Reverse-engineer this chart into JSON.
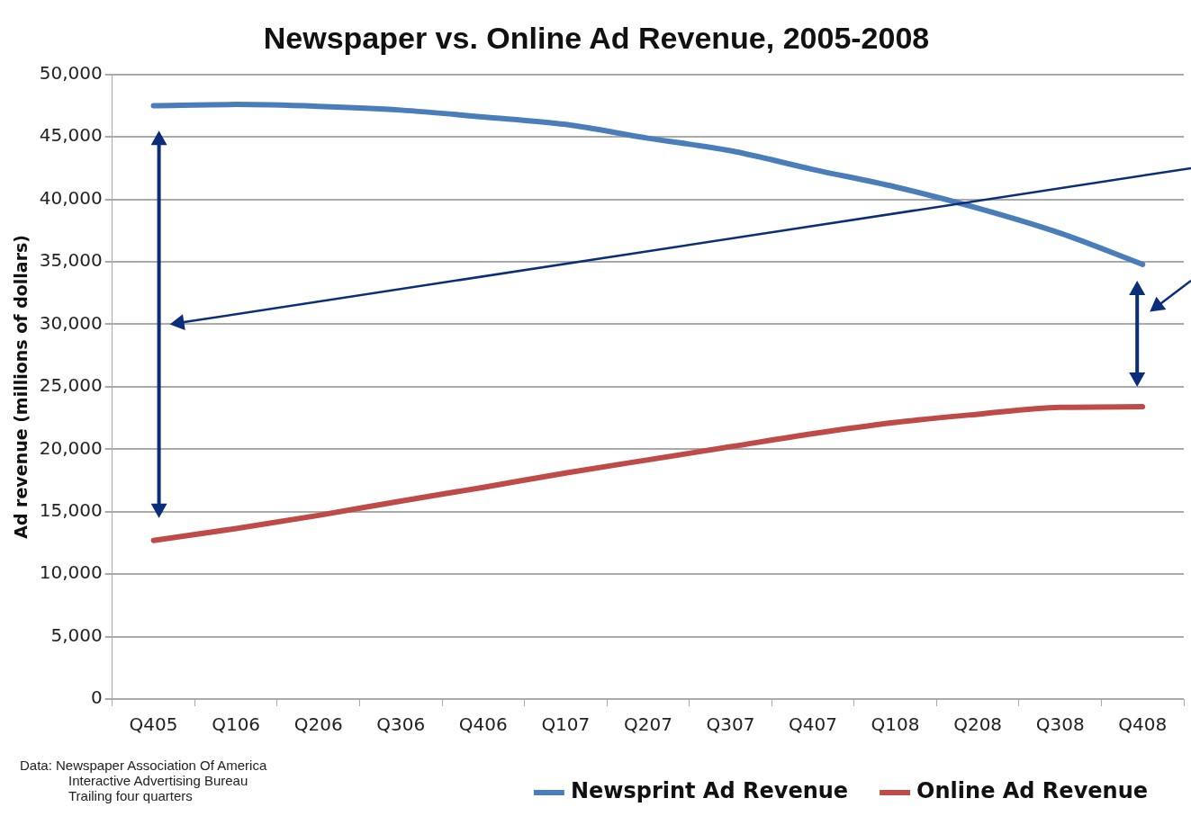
{
  "chart_data": {
    "type": "line",
    "title": "Newspaper vs. Online Ad Revenue, 2005-2008",
    "ylabel": "Ad revenue (millions of dollars)",
    "categories": [
      "Q405",
      "Q106",
      "Q206",
      "Q306",
      "Q406",
      "Q107",
      "Q207",
      "Q307",
      "Q407",
      "Q108",
      "Q208",
      "Q308",
      "Q408"
    ],
    "series": [
      {
        "name": "Newsprint Ad Revenue",
        "color": "#4a7ebb",
        "values": [
          47500,
          47600,
          47450,
          47150,
          46600,
          46000,
          44900,
          43900,
          42400,
          41000,
          39300,
          37300,
          34800
        ]
      },
      {
        "name": "Online Ad Revenue",
        "color": "#be4b48",
        "values": [
          12700,
          13650,
          14700,
          15850,
          16950,
          18100,
          19150,
          20200,
          21250,
          22150,
          22800,
          23350,
          23400
        ]
      }
    ],
    "ylim": [
      0,
      50000
    ],
    "yticks": [
      {
        "value": 0,
        "label": "0"
      },
      {
        "value": 5000,
        "label": "5,000"
      },
      {
        "value": 10000,
        "label": "10,000"
      },
      {
        "value": 15000,
        "label": "15,000"
      },
      {
        "value": 20000,
        "label": "20,000"
      },
      {
        "value": 25000,
        "label": "25,000"
      },
      {
        "value": 30000,
        "label": "30,000"
      },
      {
        "value": 35000,
        "label": "35,000"
      },
      {
        "value": 40000,
        "label": "40,000"
      },
      {
        "value": 45000,
        "label": "45,000"
      },
      {
        "value": 50000,
        "label": "50,000"
      }
    ],
    "grid": "y",
    "legend": "bottom",
    "marker": "none",
    "line_style": "solid",
    "annotations": [
      "Data: Newspaper Association Of America",
      "Interactive Advertising Bureau",
      "Trailing four quarters"
    ]
  }
}
